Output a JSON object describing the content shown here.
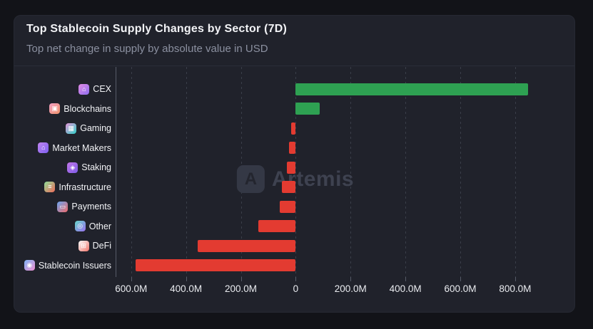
{
  "card": {
    "title": "Top Stablecoin Supply Changes by Sector (7D)",
    "subtitle": "Top net change in supply by absolute value in USD"
  },
  "watermark": {
    "logo_glyph": "A",
    "text": "Artemis"
  },
  "colors": {
    "page_bg": "#121318",
    "card_bg": "#20222B",
    "positive_bar": "#2EA152",
    "negative_bar": "#E33B31",
    "gridline": "#3A3E49",
    "axis_line": "#565B68",
    "tick_text": "#E9EBEF",
    "label_text": "#F2F3F6"
  },
  "chart_data": {
    "type": "bar",
    "orientation": "horizontal",
    "title": "Top Stablecoin Supply Changes by Sector (7D)",
    "subtitle": "Top net change in supply by absolute value in USD",
    "value_unit": "USD (millions)",
    "categories": [
      "CEX",
      "Blockchains",
      "Gaming",
      "Market Makers",
      "Staking",
      "Infrastructure",
      "Payments",
      "Other",
      "DeFi",
      "Stablecoin Issuers"
    ],
    "values": [
      848,
      88,
      -16,
      -25,
      -31,
      -50,
      -57,
      -135,
      -357,
      -585
    ],
    "icons": [
      {
        "name": "cex-icon",
        "glyph": "⌂",
        "gradient": [
          "#E18AE4",
          "#8F6FF0"
        ]
      },
      {
        "name": "blockchains-icon",
        "glyph": "▣",
        "gradient": [
          "#F2A0C4",
          "#F0926A"
        ]
      },
      {
        "name": "gaming-icon",
        "glyph": "▦",
        "gradient": [
          "#E897D8",
          "#2FD0C8"
        ]
      },
      {
        "name": "market-makers-icon",
        "glyph": "⌂",
        "gradient": [
          "#C186F0",
          "#7D5EF0"
        ]
      },
      {
        "name": "staking-icon",
        "glyph": "◈",
        "gradient": [
          "#C176E8",
          "#7E5CE8"
        ]
      },
      {
        "name": "infrastructure-icon",
        "glyph": "≡",
        "gradient": [
          "#8FE09A",
          "#EF6A5A"
        ]
      },
      {
        "name": "payments-icon",
        "glyph": "▭",
        "gradient": [
          "#6AA6F2",
          "#EF6A6A"
        ]
      },
      {
        "name": "other-icon",
        "glyph": "◎",
        "gradient": [
          "#67D8C9",
          "#9A6FF0"
        ]
      },
      {
        "name": "defi-icon",
        "glyph": "⊞",
        "gradient": [
          "#FDFDFD",
          "#F2766C"
        ]
      },
      {
        "name": "stablecoin-issuers-icon",
        "glyph": "◉",
        "gradient": [
          "#7FB4F5",
          "#EF8FD0"
        ]
      }
    ],
    "xlim": [
      -654,
      985
    ],
    "x_ticks": [
      {
        "value": -600,
        "label": "600.0M"
      },
      {
        "value": -400,
        "label": "400.0M"
      },
      {
        "value": -200,
        "label": "200.0M"
      },
      {
        "value": 0,
        "label": "0"
      },
      {
        "value": 200,
        "label": "200.0M"
      },
      {
        "value": 400,
        "label": "400.0M"
      },
      {
        "value": 600,
        "label": "600.0M"
      },
      {
        "value": 800,
        "label": "800.0M"
      }
    ],
    "grid": "dashed-vertical",
    "legend": "none",
    "positive_color": "#2EA152",
    "negative_color": "#E33B31"
  }
}
